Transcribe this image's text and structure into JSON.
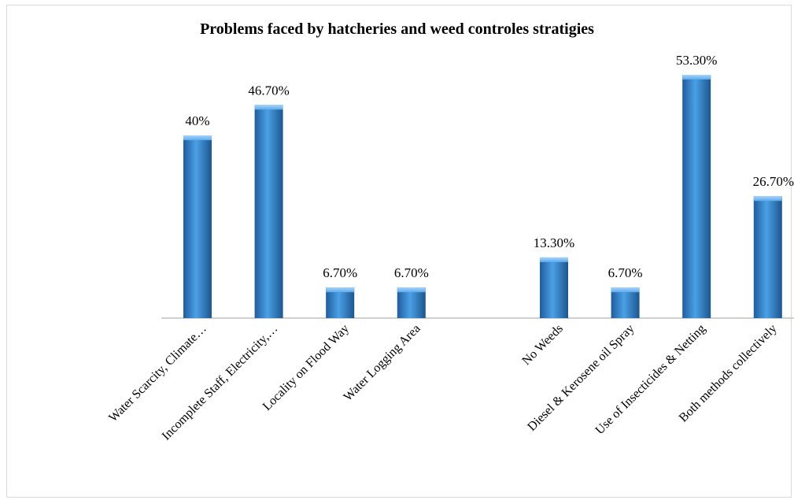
{
  "chart_data": {
    "type": "bar",
    "title": "Problems faced by hatcheries and weed controles stratigies",
    "xlabel": "",
    "ylabel": "",
    "categories": [
      "Water Scarcity, Climate…",
      "Incomplete Staff, Electricity,…",
      "Locality on Flood Way",
      "Water Logging Area",
      "",
      "No Weeds",
      "Diesel & Kerosene oil Spray",
      "Use of Insecticides & Netting",
      "Both methods collectively"
    ],
    "values": [
      40,
      46.7,
      6.7,
      6.7,
      null,
      13.3,
      6.7,
      53.3,
      26.7
    ],
    "data_labels": [
      "40%",
      "46.70%",
      "6.70%",
      "6.70%",
      "",
      "13.30%",
      "6.70%",
      "53.30%",
      "26.70%"
    ],
    "ylim": [
      0,
      60
    ],
    "grid": false,
    "legend": "none",
    "bar_color": "#3f8fd6"
  }
}
